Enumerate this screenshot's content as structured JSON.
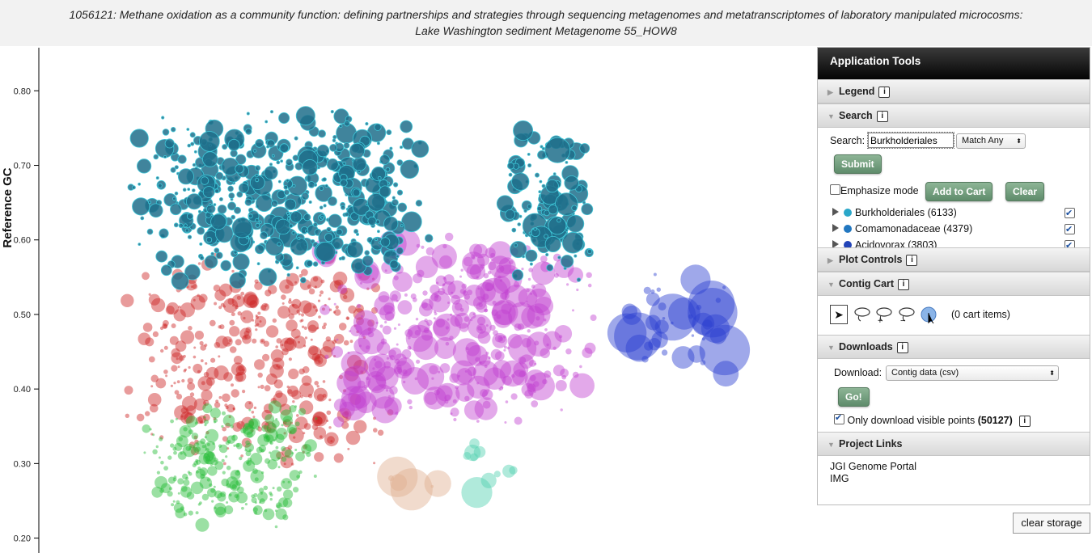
{
  "title": {
    "line1": "1056121: Methane oxidation as a community function: defining partnerships and strategies through sequencing metagenomes and metatranscriptomes of laboratory manipulated microcosms:",
    "line2": "Lake Washington sediment Metagenome 55_HOW8"
  },
  "plot": {
    "ylabel": "Reference GC",
    "yticks": [
      "0.80",
      "0.70",
      "0.60",
      "0.50",
      "0.40",
      "0.30",
      "0.20"
    ]
  },
  "chart_data": {
    "type": "scatter",
    "title": "",
    "xlabel": "",
    "ylabel": "Reference GC",
    "ylim": [
      0.18,
      0.86
    ],
    "yticks": [
      0.8,
      0.7,
      0.6,
      0.5,
      0.4,
      0.3,
      0.2
    ],
    "clusters": [
      {
        "color": "#1f6f8b",
        "x": [
          0.13,
          0.47
        ],
        "y": [
          0.55,
          0.77
        ],
        "note_size": "small-medium"
      },
      {
        "color": "#1f6f8b",
        "x": [
          0.57,
          0.68
        ],
        "y": [
          0.55,
          0.75
        ]
      },
      {
        "color": "#cc2222",
        "x": [
          0.12,
          0.42
        ],
        "y": [
          0.3,
          0.58
        ]
      },
      {
        "color": "#22bb33",
        "x": [
          0.13,
          0.34
        ],
        "y": [
          0.22,
          0.38
        ]
      },
      {
        "color": "#c040d0",
        "x": [
          0.36,
          0.68
        ],
        "y": [
          0.35,
          0.6
        ]
      },
      {
        "color": "#2a3fd0",
        "x": [
          0.73,
          0.86
        ],
        "y": [
          0.42,
          0.55
        ]
      },
      {
        "color": "#e0b090",
        "x": [
          0.43,
          0.5
        ],
        "y": [
          0.26,
          0.29
        ]
      },
      {
        "color": "#50d0b0",
        "x": [
          0.51,
          0.59
        ],
        "y": [
          0.26,
          0.33
        ]
      }
    ]
  },
  "tools": {
    "header": "Application Tools",
    "legend": {
      "label": "Legend"
    },
    "search": {
      "label": "Search",
      "field_label": "Search:",
      "value": "Burkholderiales",
      "match_mode": "Match Any",
      "submit": "Submit",
      "emphasize": "Emphasize mode",
      "add_to_cart": "Add to Cart",
      "clear": "Clear",
      "results": [
        {
          "label": "Burkholderiales (6133)",
          "color": "#2aa7c9",
          "checked": true
        },
        {
          "label": "Comamonadaceae (4379)",
          "color": "#2277c0",
          "checked": true
        },
        {
          "label": "Acidovorax (3803)",
          "color": "#2244b8",
          "checked": true
        }
      ]
    },
    "plot_controls": {
      "label": "Plot Controls"
    },
    "contig_cart": {
      "label": "Contig Cart",
      "items": "(0 cart items)"
    },
    "downloads": {
      "label": "Downloads",
      "download_label": "Download:",
      "option": "Contig data (csv)",
      "go": "Go!",
      "visible_text": "Only download visible points",
      "visible_count": "(50127)"
    },
    "project_links": {
      "label": "Project Links",
      "links": [
        "JGI Genome Portal",
        "IMG"
      ]
    }
  },
  "clear_storage": "clear storage"
}
